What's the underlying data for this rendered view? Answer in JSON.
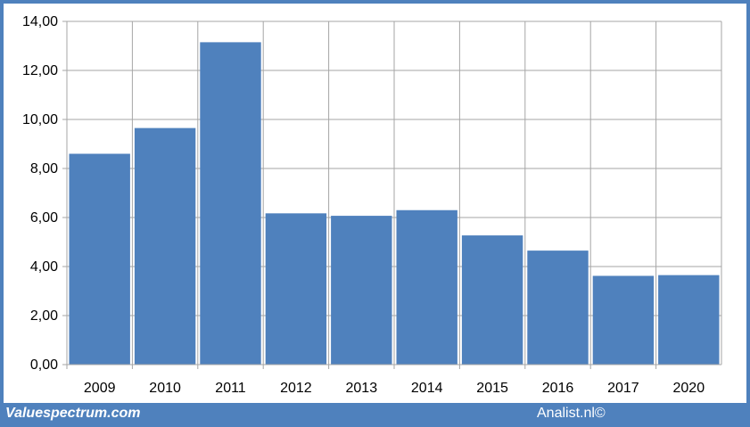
{
  "chart_data": {
    "type": "bar",
    "title": "",
    "xlabel": "",
    "ylabel": "",
    "categories": [
      "2009",
      "2010",
      "2011",
      "2012",
      "2013",
      "2014",
      "2015",
      "2016",
      "2017",
      "2020"
    ],
    "values": [
      8.6,
      9.65,
      13.15,
      6.17,
      6.07,
      6.3,
      5.27,
      4.65,
      3.62,
      3.65
    ],
    "ylim": [
      0,
      14
    ],
    "yticks": [
      "0,00",
      "2,00",
      "4,00",
      "6,00",
      "8,00",
      "10,00",
      "12,00",
      "14,00"
    ],
    "grid": true,
    "bar_color": "#4f81bd",
    "grid_color": "#a6a6a6"
  },
  "footer": {
    "left_text": "Valuespectrum.com",
    "right_text": "Analist.nl©"
  },
  "colors": {
    "frame": "#4f81bd",
    "background": "#ffffff"
  }
}
